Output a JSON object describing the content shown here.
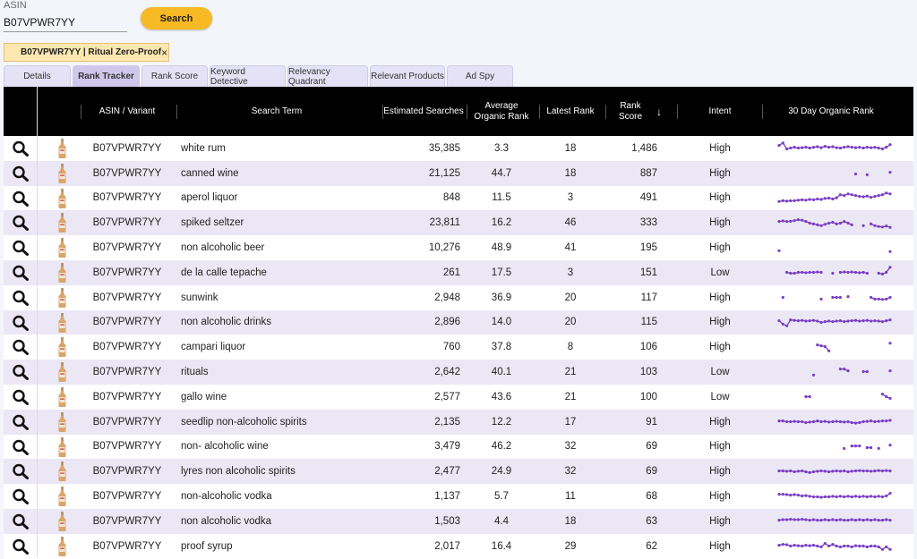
{
  "search": {
    "asin_label": "ASIN",
    "asin_value": "B07VPWR7YY",
    "button_label": "Search"
  },
  "chip": {
    "label": "B07VPWR7YY | Ritual Zero-Proof",
    "close": "×"
  },
  "tabs": [
    {
      "label": "Details",
      "active": false
    },
    {
      "label": "Rank Tracker",
      "active": true
    },
    {
      "label": "Rank Score",
      "active": false
    },
    {
      "label": "Keyword Detective",
      "active": false
    },
    {
      "label": "Relevancy Quadrant",
      "active": false
    },
    {
      "label": "Relevant Products",
      "active": false
    },
    {
      "label": "Ad Spy",
      "active": false
    }
  ],
  "table": {
    "headers": {
      "asin_variant": "ASIN / Variant",
      "search_term": "Search Term",
      "estimated_searches": "Estimated Searches",
      "avg_rank_line1": "Average",
      "avg_rank_line2": "Organic Rank",
      "latest_rank": "Latest Rank",
      "rank_score_line1": "Rank",
      "rank_score_line2": "Score",
      "sort_icon": "↓",
      "intent": "Intent",
      "organic_30": "30 Day Organic Rank"
    },
    "sparkline_color": "#7b3fc4",
    "rows": [
      {
        "asin": "B07VPWR7YY",
        "term": "white rum",
        "searches": "35,385",
        "avg": "3.3",
        "latest": "18",
        "score": "1,486",
        "intent": "High",
        "spark": [
          0.35,
          0.2,
          0.55,
          0.5,
          0.45,
          0.5,
          0.48,
          0.45,
          0.5,
          0.45,
          0.42,
          0.48,
          0.4,
          0.45,
          0.42,
          0.48,
          0.5,
          0.45,
          0.42,
          0.45,
          0.48,
          0.45,
          0.5,
          0.45,
          0.48,
          0.46,
          0.5,
          0.55,
          0.45,
          0.3
        ]
      },
      {
        "asin": "B07VPWR7YY",
        "term": "canned wine",
        "searches": "21,125",
        "avg": "44.7",
        "latest": "18",
        "score": "887",
        "intent": "High",
        "spark": [
          null,
          null,
          null,
          null,
          null,
          null,
          null,
          null,
          null,
          null,
          null,
          null,
          null,
          null,
          null,
          null,
          null,
          null,
          null,
          null,
          0.55,
          null,
          null,
          0.6,
          null,
          null,
          null,
          null,
          null,
          0.45
        ]
      },
      {
        "asin": "B07VPWR7YY",
        "term": "aperol liquor",
        "searches": "848",
        "avg": "11.5",
        "latest": "3",
        "score": "491",
        "intent": "High",
        "spark": [
          0.7,
          0.65,
          0.68,
          0.66,
          0.65,
          0.62,
          0.6,
          0.62,
          0.58,
          0.6,
          0.55,
          0.58,
          0.52,
          0.5,
          0.55,
          0.48,
          0.3,
          0.35,
          0.25,
          0.3,
          0.35,
          0.4,
          0.42,
          0.38,
          0.45,
          0.4,
          0.35,
          0.3,
          0.2,
          0.25
        ]
      },
      {
        "asin": "B07VPWR7YY",
        "term": "spiked seltzer",
        "searches": "23,811",
        "avg": "16.2",
        "latest": "46",
        "score": "333",
        "intent": "High",
        "spark": [
          0.45,
          0.42,
          0.45,
          0.44,
          0.4,
          0.35,
          0.38,
          0.45,
          0.55,
          0.6,
          0.65,
          0.7,
          0.62,
          0.55,
          0.5,
          0.6,
          0.55,
          0.45,
          0.55,
          0.65,
          null,
          null,
          0.7,
          null,
          0.6,
          0.7,
          0.75,
          0.78,
          0.72,
          0.8
        ]
      },
      {
        "asin": "B07VPWR7YY",
        "term": "non alcoholic beer",
        "searches": "10,276",
        "avg": "48.9",
        "latest": "41",
        "score": "195",
        "intent": "High",
        "spark": [
          0.7,
          null,
          null,
          null,
          null,
          null,
          null,
          null,
          null,
          null,
          null,
          null,
          null,
          null,
          null,
          null,
          null,
          null,
          null,
          null,
          null,
          null,
          null,
          null,
          null,
          null,
          null,
          null,
          null,
          0.75
        ]
      },
      {
        "asin": "B07VPWR7YY",
        "term": "de la calle tepache",
        "searches": "261",
        "avg": "17.5",
        "latest": "3",
        "score": "151",
        "intent": "Low",
        "spark": [
          null,
          null,
          0.5,
          0.55,
          0.55,
          0.5,
          0.5,
          0.52,
          0.5,
          0.5,
          0.48,
          0.5,
          null,
          null,
          0.55,
          null,
          0.5,
          0.48,
          0.5,
          0.48,
          0.5,
          0.52,
          0.5,
          0.55,
          null,
          null,
          0.55,
          0.6,
          0.5,
          0.2
        ]
      },
      {
        "asin": "B07VPWR7YY",
        "term": "sunwink",
        "searches": "2,948",
        "avg": "36.9",
        "latest": "20",
        "score": "117",
        "intent": "High",
        "spark": [
          null,
          0.5,
          null,
          null,
          null,
          null,
          null,
          null,
          null,
          null,
          null,
          0.6,
          null,
          null,
          0.5,
          0.5,
          0.5,
          null,
          0.45,
          null,
          null,
          null,
          null,
          null,
          0.5,
          0.6,
          0.6,
          0.62,
          0.6,
          0.5
        ]
      },
      {
        "asin": "B07VPWR7YY",
        "term": "non alcoholic drinks",
        "searches": "2,896",
        "avg": "14.0",
        "latest": "20",
        "score": "115",
        "intent": "High",
        "spark": [
          0.4,
          0.6,
          0.7,
          0.35,
          0.38,
          0.4,
          0.38,
          0.42,
          0.4,
          0.38,
          0.42,
          0.5,
          0.45,
          0.42,
          0.45,
          0.42,
          0.4,
          0.45,
          0.42,
          0.4,
          0.38,
          0.42,
          0.4,
          0.38,
          0.42,
          0.4,
          0.42,
          0.45,
          0.4,
          0.35
        ]
      },
      {
        "asin": "B07VPWR7YY",
        "term": "campari liquor",
        "searches": "760",
        "avg": "37.8",
        "latest": "8",
        "score": "106",
        "intent": "High",
        "spark": [
          null,
          null,
          null,
          null,
          null,
          null,
          null,
          null,
          null,
          null,
          0.4,
          0.45,
          0.5,
          0.75,
          null,
          null,
          null,
          null,
          null,
          null,
          null,
          null,
          null,
          null,
          null,
          null,
          null,
          null,
          null,
          0.3
        ]
      },
      {
        "asin": "B07VPWR7YY",
        "term": "rituals",
        "searches": "2,642",
        "avg": "40.1",
        "latest": "21",
        "score": "103",
        "intent": "Low",
        "spark": [
          null,
          null,
          null,
          null,
          null,
          null,
          null,
          null,
          null,
          0.7,
          null,
          null,
          null,
          null,
          null,
          null,
          0.35,
          0.35,
          0.45,
          null,
          null,
          null,
          0.5,
          0.5,
          null,
          null,
          null,
          null,
          null,
          0.45
        ]
      },
      {
        "asin": "B07VPWR7YY",
        "term": "gallo wine",
        "searches": "2,577",
        "avg": "43.6",
        "latest": "21",
        "score": "100",
        "intent": "Low",
        "spark": [
          null,
          null,
          null,
          null,
          null,
          null,
          null,
          0.5,
          0.5,
          null,
          null,
          null,
          null,
          null,
          null,
          null,
          null,
          null,
          null,
          null,
          null,
          null,
          null,
          null,
          null,
          null,
          null,
          0.35,
          0.5,
          0.6
        ]
      },
      {
        "asin": "B07VPWR7YY",
        "term": "seedlip non-alcoholic spirits",
        "searches": "2,135",
        "avg": "12.2",
        "latest": "17",
        "score": "91",
        "intent": "High",
        "spark": [
          0.45,
          0.45,
          0.5,
          0.5,
          0.48,
          0.5,
          0.5,
          0.55,
          0.52,
          0.5,
          0.45,
          0.5,
          0.48,
          0.52,
          0.5,
          0.48,
          0.5,
          0.52,
          0.5,
          0.55,
          0.58,
          0.55,
          0.5,
          0.48,
          0.45,
          0.5,
          0.48,
          0.45,
          0.45,
          0.42
        ]
      },
      {
        "asin": "B07VPWR7YY",
        "term": "non- alcoholic wine",
        "searches": "3,479",
        "avg": "46.2",
        "latest": "32",
        "score": "69",
        "intent": "High",
        "spark": [
          null,
          null,
          null,
          null,
          null,
          null,
          null,
          null,
          null,
          null,
          null,
          null,
          null,
          null,
          null,
          null,
          null,
          0.6,
          null,
          0.45,
          0.45,
          0.45,
          null,
          0.55,
          0.55,
          null,
          0.6,
          null,
          null,
          0.4
        ]
      },
      {
        "asin": "B07VPWR7YY",
        "term": "lyres non alcoholic spirits",
        "searches": "2,477",
        "avg": "24.9",
        "latest": "32",
        "score": "69",
        "intent": "High",
        "spark": [
          0.5,
          0.5,
          0.52,
          0.5,
          0.55,
          0.52,
          0.5,
          0.55,
          0.6,
          0.55,
          0.52,
          0.5,
          0.52,
          0.55,
          0.52,
          0.5,
          0.52,
          0.5,
          0.55,
          0.52,
          0.5,
          0.48,
          0.5,
          0.5,
          0.52,
          0.5,
          0.48,
          0.5,
          0.48,
          0.5
        ]
      },
      {
        "asin": "B07VPWR7YY",
        "term": "non-alcoholic vodka",
        "searches": "1,137",
        "avg": "5.7",
        "latest": "11",
        "score": "68",
        "intent": "High",
        "spark": [
          0.4,
          0.4,
          0.42,
          0.45,
          0.42,
          0.45,
          0.5,
          0.48,
          0.52,
          0.55,
          0.55,
          0.58,
          0.55,
          0.55,
          0.52,
          0.55,
          0.52,
          0.55,
          0.52,
          0.55,
          0.52,
          0.55,
          0.52,
          0.55,
          0.52,
          0.55,
          0.52,
          0.55,
          0.5,
          0.35
        ]
      },
      {
        "asin": "B07VPWR7YY",
        "term": "non alcoholic vodka",
        "searches": "1,503",
        "avg": "4.4",
        "latest": "18",
        "score": "63",
        "intent": "High",
        "spark": [
          0.45,
          0.42,
          0.42,
          0.4,
          0.42,
          0.42,
          0.4,
          0.42,
          0.45,
          0.42,
          0.45,
          0.45,
          0.42,
          0.45,
          0.42,
          0.45,
          0.42,
          0.45,
          0.45,
          0.42,
          0.45,
          0.42,
          0.45,
          0.42,
          0.45,
          0.42,
          0.45,
          0.45,
          0.42,
          0.45
        ]
      },
      {
        "asin": "B07VPWR7YY",
        "term": "proof syrup",
        "searches": "2,017",
        "avg": "16.4",
        "latest": "29",
        "score": "62",
        "intent": "High",
        "spark": [
          0.45,
          0.4,
          0.42,
          0.5,
          0.45,
          0.48,
          0.5,
          0.45,
          0.48,
          0.45,
          0.5,
          0.55,
          0.35,
          0.5,
          0.4,
          0.5,
          0.55,
          0.5,
          0.5,
          0.55,
          0.48,
          0.5,
          0.5,
          0.55,
          0.5,
          0.5,
          0.55,
          0.7,
          0.55,
          0.7
        ]
      }
    ]
  }
}
